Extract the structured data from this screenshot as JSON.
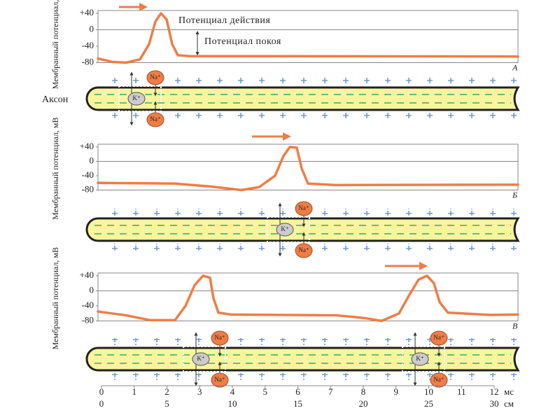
{
  "y_axis_label": "Мембранный потенциал, мВ",
  "axon_label": "Аксон",
  "panels": [
    {
      "letter": "А",
      "yticks": [
        "+40",
        "0",
        "-40",
        "-80"
      ],
      "annotations": [
        "Потенциал действия",
        "Потенциал покоя"
      ],
      "sites": [
        {
          "ions": [
            "Na⁺",
            "K⁺",
            "Na⁺"
          ]
        }
      ]
    },
    {
      "letter": "Б",
      "yticks": [
        "+40",
        "0",
        "-40",
        "-80"
      ],
      "annotations": [],
      "sites": [
        {
          "ions": [
            "Na⁺",
            "K⁺",
            "Na⁺"
          ]
        }
      ]
    },
    {
      "letter": "В",
      "yticks": [
        "+40",
        "0",
        "-40",
        "-80"
      ],
      "annotations": [],
      "sites": [
        {
          "ions": [
            "Na⁺",
            "K⁺",
            "Na⁺"
          ]
        },
        {
          "ions": [
            "Na⁺",
            "K⁺",
            "Na⁺"
          ]
        }
      ]
    }
  ],
  "x_axis": {
    "time_ticks": [
      "0",
      "1",
      "2",
      "3",
      "4",
      "5",
      "6",
      "7",
      "8",
      "9",
      "10",
      "11",
      "12"
    ],
    "time_unit": "мс",
    "distance_ticks": [
      "0",
      "5",
      "10",
      "15",
      "20",
      "25",
      "30"
    ],
    "distance_unit": "см"
  }
}
